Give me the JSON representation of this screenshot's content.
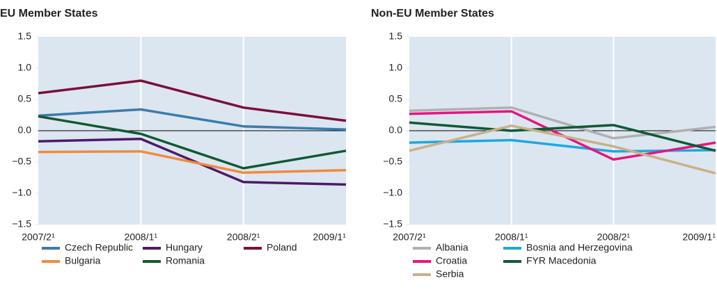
{
  "chart_data": [
    {
      "type": "line",
      "title": "EU Member States",
      "categories": [
        "2007/2¹",
        "2008/1¹",
        "2008/2¹",
        "2009/1¹"
      ],
      "ylim": [
        -1.5,
        1.5
      ],
      "yticks": [
        {
          "value": -1.5,
          "label": "−1.5"
        },
        {
          "value": -1.0,
          "label": "−1.0"
        },
        {
          "value": -0.5,
          "label": "−0.5"
        },
        {
          "value": 0,
          "label": "0.0"
        },
        0.5,
        {
          "value": 1.0,
          "label": "1.0"
        },
        1.5
      ],
      "series": [
        {
          "name": "Czech Republic",
          "color": "#3a7bb0",
          "values": [
            0.24,
            0.34,
            0.07,
            0.02
          ]
        },
        {
          "name": "Hungary",
          "color": "#4b1a6b",
          "values": [
            -0.17,
            -0.13,
            -0.82,
            -0.86
          ]
        },
        {
          "name": "Poland",
          "color": "#7a0f3a",
          "values": [
            0.6,
            0.8,
            0.37,
            0.16
          ]
        },
        {
          "name": "Bulgaria",
          "color": "#f08a3c",
          "values": [
            -0.34,
            -0.33,
            -0.67,
            -0.63
          ]
        },
        {
          "name": "Romania",
          "color": "#0f5a32",
          "values": [
            0.23,
            -0.05,
            -0.6,
            -0.32
          ]
        }
      ]
    },
    {
      "type": "line",
      "title": "Non-EU Member States",
      "categories": [
        "2007/2¹",
        "2008/1¹",
        "2008/2¹",
        "2009/1¹"
      ],
      "ylim": [
        -1.5,
        1.5
      ],
      "yticks": [
        {
          "value": -1.5,
          "label": "−1.5"
        },
        {
          "value": -1.0,
          "label": "−1.0"
        },
        {
          "value": -0.5,
          "label": "−0.5"
        },
        {
          "value": 0,
          "label": "0.0"
        },
        0.5,
        {
          "value": 1.0,
          "label": "1.0"
        },
        1.5
      ],
      "series": [
        {
          "name": "Albania",
          "color": "#b0b0b0",
          "values": [
            0.32,
            0.37,
            -0.12,
            0.06
          ]
        },
        {
          "name": "Bosnia and Herzegovina",
          "color": "#1aa9e1",
          "values": [
            -0.19,
            -0.15,
            -0.33,
            -0.31
          ]
        },
        {
          "name": "Croatia",
          "color": "#e6157f",
          "values": [
            0.27,
            0.31,
            -0.46,
            -0.19
          ]
        },
        {
          "name": "FYR Macedonia",
          "color": "#0f5a32",
          "values": [
            0.13,
            0.0,
            0.09,
            -0.32
          ]
        },
        {
          "name": "Serbia",
          "color": "#c9b08a",
          "values": [
            -0.32,
            0.08,
            -0.25,
            -0.68
          ]
        }
      ]
    }
  ]
}
